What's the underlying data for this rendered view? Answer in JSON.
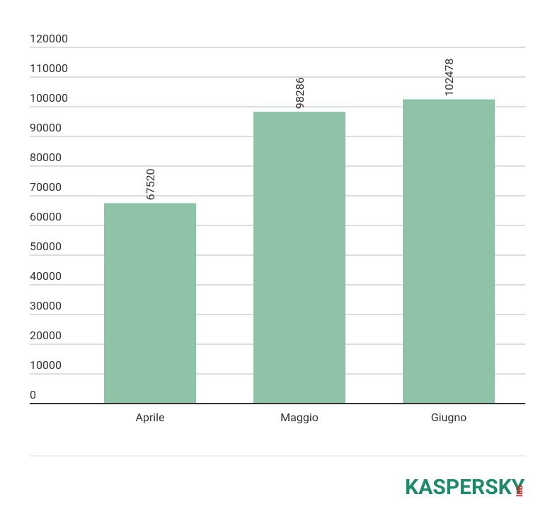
{
  "chart_data": {
    "type": "bar",
    "categories": [
      "Aprile",
      "Maggio",
      "Giugno"
    ],
    "values": [
      67520,
      98286,
      102478
    ],
    "color": "#8fc3a7",
    "ylim": [
      0,
      120000
    ],
    "yticks": [
      0,
      10000,
      20000,
      30000,
      40000,
      50000,
      60000,
      70000,
      80000,
      90000,
      100000,
      110000,
      120000
    ],
    "grid": true
  },
  "logo": {
    "name": "KASPERSKY",
    "suffix": "lab"
  }
}
